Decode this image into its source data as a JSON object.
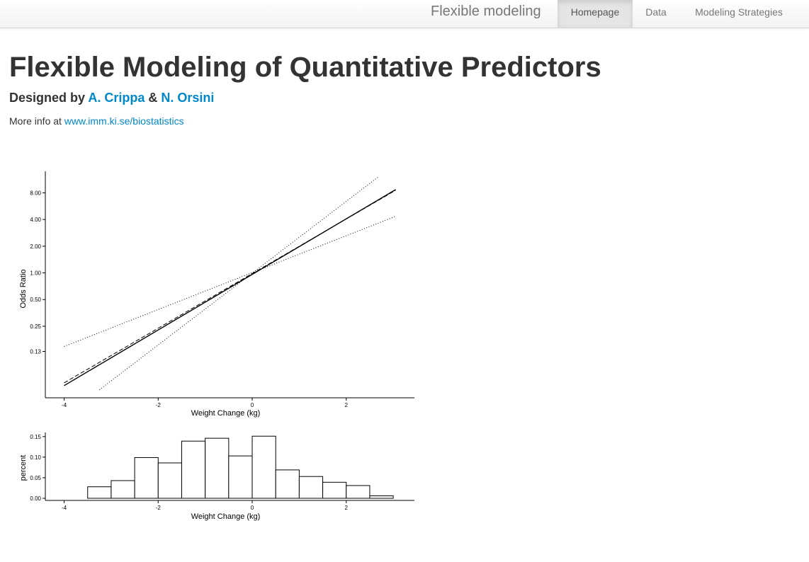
{
  "navbar": {
    "brand": "Flexible modeling",
    "items": [
      {
        "label": "Homepage",
        "active": true
      },
      {
        "label": "Data",
        "active": false
      },
      {
        "label": "Modeling Strategies",
        "active": false
      }
    ]
  },
  "header": {
    "title": "Flexible Modeling of Quantitative Predictors",
    "designed_by_prefix": "Designed by ",
    "author1": "A. Crippa",
    "and": " & ",
    "author2": "N. Orsini",
    "more_info_prefix": "More info at ",
    "more_info_link": "www.imm.ki.se/biostatistics"
  },
  "colors": {
    "link": "#0088cc",
    "text": "#333333",
    "nav_text": "#777777"
  },
  "chart_data": [
    {
      "type": "line",
      "xlabel": "Weight Change (kg)",
      "ylabel": "Odds Ratio",
      "y_scale": "log",
      "xlim": [
        -4.4,
        3.45
      ],
      "ylim": [
        0.039,
        14
      ],
      "x_ticks": [
        -4,
        -2,
        0,
        2
      ],
      "x_tick_labels": [
        "-4",
        "-2",
        "0",
        "2"
      ],
      "y_ticks": [
        0.13,
        0.25,
        0.5,
        1,
        2,
        4,
        8
      ],
      "y_tick_labels": [
        "0.13",
        "0.25",
        "0.50",
        "1.00",
        "2.00",
        "4.00",
        "8.00"
      ],
      "grid": false,
      "series": [
        {
          "style": "solid",
          "x": [
            -4,
            3.05
          ],
          "y": [
            0.0535,
            8.7
          ]
        },
        {
          "style": "dashed",
          "x": [
            -4,
            3.05
          ],
          "y": [
            0.0575,
            8.55
          ]
        },
        {
          "style": "dotted",
          "x": [
            -4,
            3.05
          ],
          "y": [
            0.148,
            4.35
          ]
        },
        {
          "style": "dotted",
          "x": [
            -3.25,
            2.7
          ],
          "y": [
            0.048,
            12.3
          ]
        }
      ]
    },
    {
      "type": "bar",
      "xlabel": "Weight Change (kg)",
      "ylabel": "percent",
      "xlim": [
        -4.4,
        3.45
      ],
      "ylim": [
        0,
        0.16
      ],
      "x_ticks": [
        -4,
        -2,
        0,
        2
      ],
      "x_tick_labels": [
        "-4",
        "-2",
        "0",
        "2"
      ],
      "y_ticks": [
        0,
        0.05,
        0.1,
        0.15
      ],
      "y_tick_labels": [
        "0.00",
        "0.05",
        "0.10",
        "0.15"
      ],
      "grid": false,
      "bin_edges": [
        -3.5,
        -3.0,
        -2.5,
        -2.0,
        -1.5,
        -1.0,
        -0.5,
        0.0,
        0.5,
        1.0,
        1.5,
        2.0,
        2.5,
        3.0
      ],
      "values": [
        0.028,
        0.043,
        0.099,
        0.086,
        0.139,
        0.146,
        0.103,
        0.151,
        0.069,
        0.053,
        0.039,
        0.031,
        0.006
      ]
    }
  ]
}
